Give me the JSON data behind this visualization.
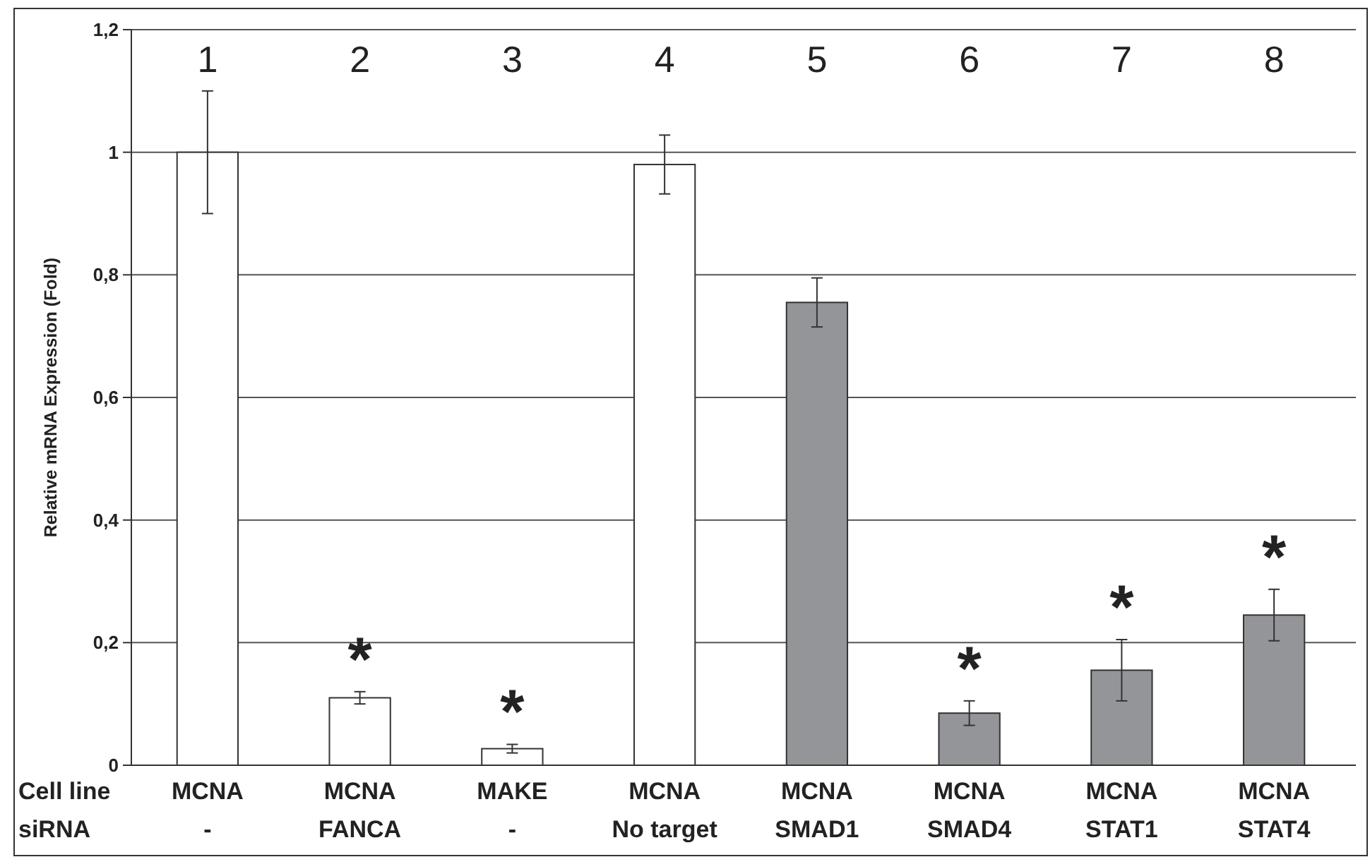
{
  "chart_data": {
    "type": "bar",
    "ylabel": "Relative mRNA Expression (Fold)",
    "categories": [
      "MCNA\n-",
      "MCNA\nFANCA",
      "MAKE\n-",
      "MCNA\nNo target",
      "MCNA\nSMAD1",
      "MCNA\nSMAD4",
      "MCNA\nSTAT1",
      "MCNA\nSTAT4"
    ],
    "values": [
      1.0,
      0.11,
      0.027,
      0.98,
      0.755,
      0.085,
      0.155,
      0.245
    ],
    "errors": [
      0.1,
      0.01,
      0.007,
      0.048,
      0.04,
      0.02,
      0.05,
      0.042
    ],
    "colors": [
      "#ffffff",
      "#ffffff",
      "#ffffff",
      "#ffffff",
      "#939598",
      "#939598",
      "#939598",
      "#939598"
    ],
    "ylim": [
      0,
      1.2
    ],
    "yticks": [
      0,
      {
        "value": 0.2,
        "label": "0,2"
      },
      {
        "value": 0.4,
        "label": "0,4"
      },
      {
        "value": 0.6,
        "label": "0,6"
      },
      {
        "value": 0.8,
        "label": "0,8"
      },
      1,
      {
        "value": 1.2,
        "label": "1,2"
      }
    ],
    "grid": "y",
    "value_labels": [
      null,
      "*",
      "*",
      null,
      null,
      "*",
      "*",
      "*"
    ],
    "annotations": [
      "Cell line",
      "siRNA",
      "1",
      "2",
      "3",
      "4",
      "5",
      "6",
      "7",
      "8"
    ]
  }
}
